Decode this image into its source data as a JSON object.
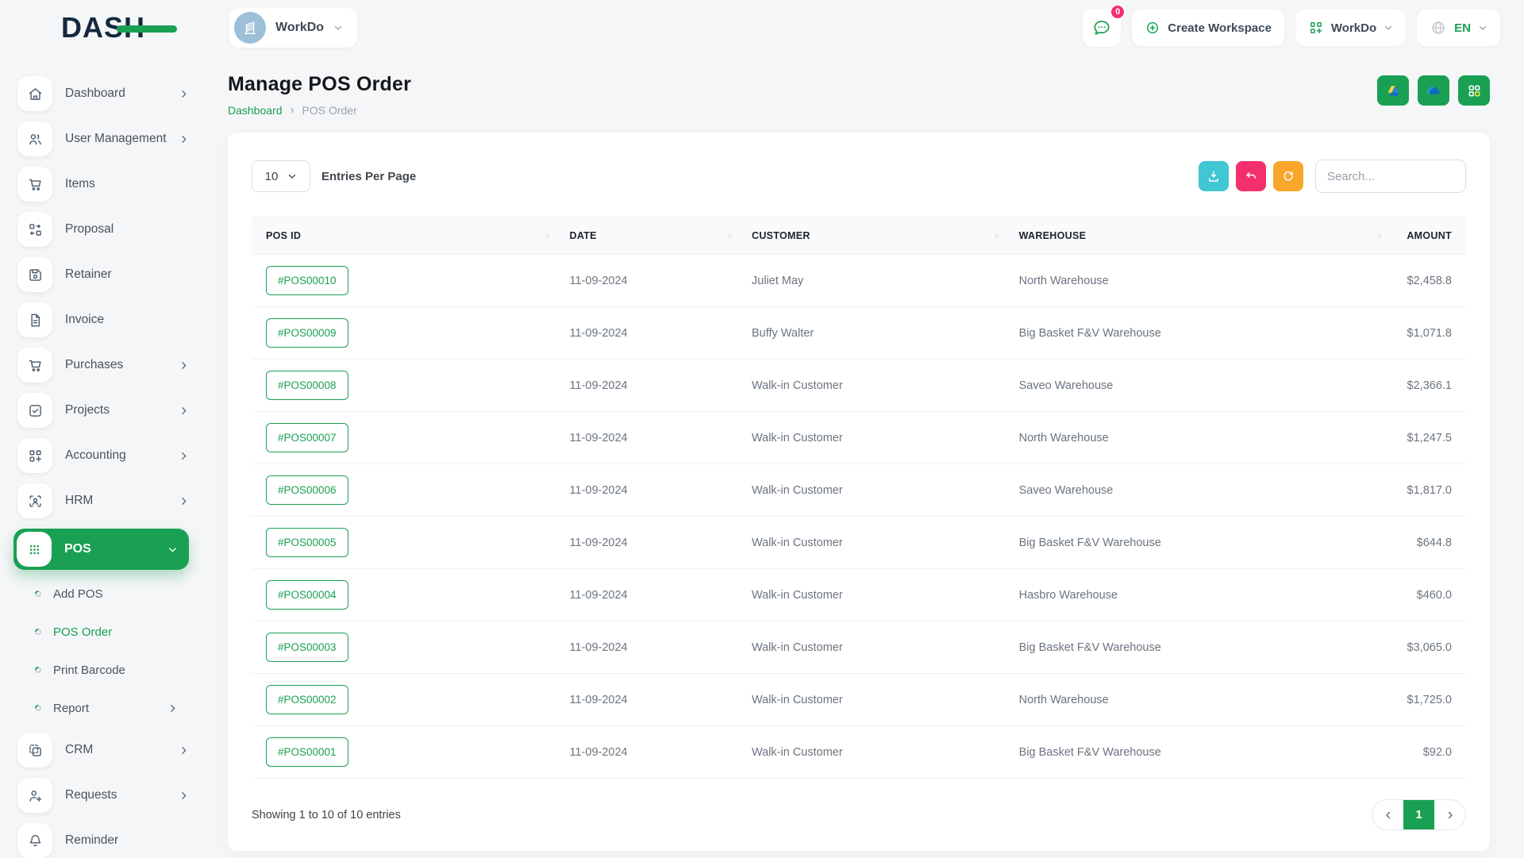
{
  "colors": {
    "primary_green": "#1aa053",
    "teal": "#41c6d4",
    "pink": "#f42f6e",
    "orange": "#f9a72a",
    "navy": "#14293e"
  },
  "brand": {
    "logo_text": "DASH"
  },
  "topbar": {
    "workspace_switcher_label": "WorkDo",
    "messages_badge": "0",
    "create_workspace_label": "Create Workspace",
    "workdo_menu_label": "WorkDo",
    "language_code": "EN"
  },
  "page": {
    "title": "Manage POS Order",
    "breadcrumb_home": "Dashboard",
    "breadcrumb_separator": "›",
    "breadcrumb_current": "POS Order"
  },
  "sidebar": [
    {
      "label": "Dashboard",
      "icon": "home-icon",
      "chevron": "right"
    },
    {
      "label": "User Management",
      "icon": "users-icon",
      "chevron": "right"
    },
    {
      "label": "Items",
      "icon": "cart-icon"
    },
    {
      "label": "Proposal",
      "icon": "qr-arrows-icon"
    },
    {
      "label": "Retainer",
      "icon": "floppy-icon"
    },
    {
      "label": "Invoice",
      "icon": "file-icon"
    },
    {
      "label": "Purchases",
      "icon": "cart-icon",
      "chevron": "right"
    },
    {
      "label": "Projects",
      "icon": "check-square-icon",
      "chevron": "right"
    },
    {
      "label": "Accounting",
      "icon": "grid-plus-icon",
      "chevron": "right"
    },
    {
      "label": "HRM",
      "icon": "user-scan-icon",
      "chevron": "right"
    },
    {
      "label": "POS",
      "icon": "grid-dots-icon",
      "chevron": "down",
      "active": true
    },
    {
      "label": "Add POS",
      "sub": true
    },
    {
      "label": "POS Order",
      "sub": true,
      "active": true
    },
    {
      "label": "Print Barcode",
      "sub": true
    },
    {
      "label": "Report",
      "sub": true,
      "chevron": "right"
    },
    {
      "label": "CRM",
      "icon": "frames-icon",
      "chevron": "right"
    },
    {
      "label": "Requests",
      "icon": "user-plus-icon",
      "chevron": "right"
    },
    {
      "label": "Reminder",
      "icon": "bell-icon"
    }
  ],
  "controls": {
    "entries_value": "10",
    "entries_label": "Entries Per Page",
    "search_placeholder": "Search..."
  },
  "table": {
    "sort_glyph": "↑↓",
    "columns": [
      "POS ID",
      "DATE",
      "CUSTOMER",
      "WAREHOUSE",
      "AMOUNT"
    ],
    "rows": [
      {
        "pos_id": "#POS00010",
        "date": "11-09-2024",
        "customer": "Juliet May",
        "warehouse": "North Warehouse",
        "amount": "$2,458.8"
      },
      {
        "pos_id": "#POS00009",
        "date": "11-09-2024",
        "customer": "Buffy Walter",
        "warehouse": "Big Basket F&V Warehouse",
        "amount": "$1,071.8"
      },
      {
        "pos_id": "#POS00008",
        "date": "11-09-2024",
        "customer": "Walk-in Customer",
        "warehouse": "Saveo Warehouse",
        "amount": "$2,366.1"
      },
      {
        "pos_id": "#POS00007",
        "date": "11-09-2024",
        "customer": "Walk-in Customer",
        "warehouse": "North Warehouse",
        "amount": "$1,247.5"
      },
      {
        "pos_id": "#POS00006",
        "date": "11-09-2024",
        "customer": "Walk-in Customer",
        "warehouse": "Saveo Warehouse",
        "amount": "$1,817.0"
      },
      {
        "pos_id": "#POS00005",
        "date": "11-09-2024",
        "customer": "Walk-in Customer",
        "warehouse": "Big Basket F&V Warehouse",
        "amount": "$644.8"
      },
      {
        "pos_id": "#POS00004",
        "date": "11-09-2024",
        "customer": "Walk-in Customer",
        "warehouse": "Hasbro Warehouse",
        "amount": "$460.0"
      },
      {
        "pos_id": "#POS00003",
        "date": "11-09-2024",
        "customer": "Walk-in Customer",
        "warehouse": "Big Basket F&V Warehouse",
        "amount": "$3,065.0"
      },
      {
        "pos_id": "#POS00002",
        "date": "11-09-2024",
        "customer": "Walk-in Customer",
        "warehouse": "North Warehouse",
        "amount": "$1,725.0"
      },
      {
        "pos_id": "#POS00001",
        "date": "11-09-2024",
        "customer": "Walk-in Customer",
        "warehouse": "Big Basket F&V Warehouse",
        "amount": "$92.0"
      }
    ],
    "summary": "Showing 1 to 10 of 10 entries",
    "pagination_current": "1"
  }
}
